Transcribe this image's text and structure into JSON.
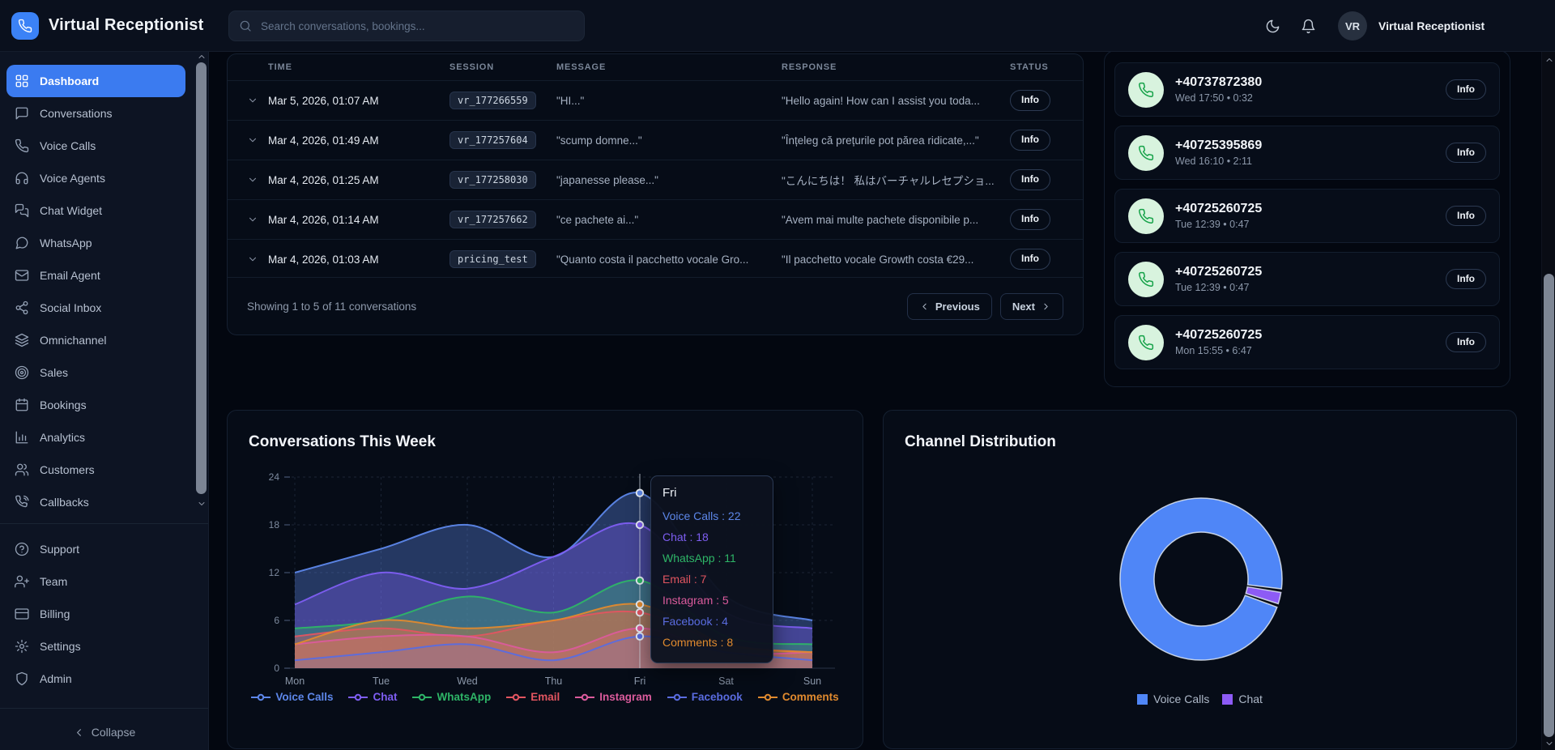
{
  "app": {
    "title": "Virtual Receptionist"
  },
  "topbar": {
    "search_placeholder": "Search conversations, bookings...",
    "user_initials": "VR",
    "user_name": "Virtual Receptionist"
  },
  "sidebar": {
    "items": [
      {
        "label": "Dashboard",
        "icon": "dashboard-icon",
        "active": true
      },
      {
        "label": "Conversations",
        "icon": "message-square-icon",
        "active": false
      },
      {
        "label": "Voice Calls",
        "icon": "phone-icon",
        "active": false
      },
      {
        "label": "Voice Agents",
        "icon": "headphones-icon",
        "active": false
      },
      {
        "label": "Chat Widget",
        "icon": "chat-widget-icon",
        "active": false
      },
      {
        "label": "WhatsApp",
        "icon": "message-circle-icon",
        "active": false
      },
      {
        "label": "Email Agent",
        "icon": "mail-icon",
        "active": false
      },
      {
        "label": "Social Inbox",
        "icon": "share-icon",
        "active": false
      },
      {
        "label": "Omnichannel",
        "icon": "layers-icon",
        "active": false
      },
      {
        "label": "Sales",
        "icon": "target-icon",
        "active": false
      },
      {
        "label": "Bookings",
        "icon": "calendar-icon",
        "active": false
      },
      {
        "label": "Analytics",
        "icon": "bar-chart-icon",
        "active": false
      },
      {
        "label": "Customers",
        "icon": "users-icon",
        "active": false
      },
      {
        "label": "Callbacks",
        "icon": "phone-call-icon",
        "active": false
      }
    ],
    "secondary": [
      {
        "label": "Support",
        "icon": "help-circle-icon"
      },
      {
        "label": "Team",
        "icon": "user-plus-icon"
      },
      {
        "label": "Billing",
        "icon": "credit-card-icon"
      },
      {
        "label": "Settings",
        "icon": "gear-icon"
      },
      {
        "label": "Admin",
        "icon": "shield-icon"
      }
    ],
    "collapse_label": "Collapse"
  },
  "conversations_table": {
    "columns": [
      "TIME",
      "SESSION",
      "MESSAGE",
      "RESPONSE",
      "STATUS"
    ],
    "rows": [
      {
        "time": "Mar 5, 2026, 01:07 AM",
        "session": "vr_177266559",
        "message": "\"HI...\"",
        "response": "\"Hello again! How can I assist you toda...",
        "status": "Info"
      },
      {
        "time": "Mar 4, 2026, 01:49 AM",
        "session": "vr_177257604",
        "message": "\"scump domne...\"",
        "response": "\"Înțeleg că prețurile pot părea ridicate,...\"",
        "status": "Info"
      },
      {
        "time": "Mar 4, 2026, 01:25 AM",
        "session": "vr_177258030",
        "message": "\"japanesse please...\"",
        "response": "\"こんにちは！ 私はバーチャルレセプショ...",
        "status": "Info"
      },
      {
        "time": "Mar 4, 2026, 01:14 AM",
        "session": "vr_177257662",
        "message": "\"ce pachete ai...\"",
        "response": "\"Avem mai multe pachete disponibile p...",
        "status": "Info"
      },
      {
        "time": "Mar 4, 2026, 01:03 AM",
        "session": "pricing_test",
        "message": "\"Quanto costa il pacchetto vocale Gro...",
        "response": "\"Il pacchetto vocale Growth costa €29...",
        "status": "Info"
      }
    ],
    "footer": "Showing 1 to 5 of 11 conversations",
    "prev_label": "Previous",
    "next_label": "Next"
  },
  "calls_panel": {
    "info_label": "Info",
    "items": [
      {
        "number": "+40737872380",
        "meta": "Wed 17:50 • 0:32"
      },
      {
        "number": "+40725395869",
        "meta": "Wed 16:10 • 2:11"
      },
      {
        "number": "+40725260725",
        "meta": "Tue 12:39 • 0:47"
      },
      {
        "number": "+40725260725",
        "meta": "Tue 12:39 • 0:47"
      },
      {
        "number": "+40725260725",
        "meta": "Mon 15:55 • 6:47"
      }
    ]
  },
  "chart_data": [
    {
      "type": "area",
      "title": "Conversations This Week",
      "x": [
        "Mon",
        "Tue",
        "Wed",
        "Thu",
        "Fri",
        "Sat",
        "Sun"
      ],
      "ylim": [
        0,
        24
      ],
      "yticks": [
        0,
        6,
        12,
        18,
        24
      ],
      "grid": true,
      "legend_position": "bottom",
      "series": [
        {
          "name": "Voice Calls",
          "color": "#5d87ea",
          "values": [
            12,
            15,
            18,
            14,
            22,
            9,
            6
          ]
        },
        {
          "name": "Chat",
          "color": "#7e5ef2",
          "values": [
            8,
            12,
            10,
            14,
            18,
            7,
            5
          ]
        },
        {
          "name": "WhatsApp",
          "color": "#2eb567",
          "values": [
            5,
            6,
            9,
            7,
            11,
            4,
            3
          ]
        },
        {
          "name": "Email",
          "color": "#e25560",
          "values": [
            4,
            5,
            4,
            6,
            7,
            3,
            2
          ]
        },
        {
          "name": "Instagram",
          "color": "#db5b9c",
          "values": [
            3,
            4,
            4,
            2,
            5,
            2,
            2
          ]
        },
        {
          "name": "Facebook",
          "color": "#5a6ce0",
          "values": [
            1,
            2,
            3,
            1,
            4,
            2,
            1
          ]
        },
        {
          "name": "Comments",
          "color": "#e08a2e",
          "values": [
            3,
            6,
            5,
            6,
            8,
            3,
            2
          ]
        }
      ],
      "tooltip": {
        "day": "Fri",
        "index": 4
      }
    },
    {
      "type": "donut",
      "title": "Channel Distribution",
      "rotation_deg": 109,
      "legend_position": "bottom",
      "slices": [
        {
          "label": "Voice Calls",
          "value": 97,
          "color": "#4f86f7"
        },
        {
          "label": "Chat",
          "value": 3,
          "color": "#8d5bf5"
        }
      ]
    }
  ]
}
